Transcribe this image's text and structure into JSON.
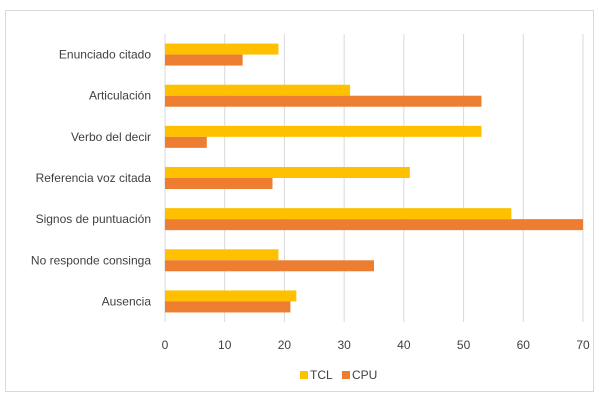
{
  "chart_data": {
    "type": "bar",
    "orientation": "horizontal",
    "title": "",
    "xlabel": "",
    "ylabel": "",
    "categories": [
      "Enunciado citado",
      "Articulación",
      "Verbo del decir",
      "Referencia voz citada",
      "Signos de puntuación",
      "No responde consinga",
      "Ausencia"
    ],
    "series": [
      {
        "name": "TCL",
        "color": "#FFC000",
        "values": [
          19,
          31,
          53,
          41,
          58,
          19,
          22
        ]
      },
      {
        "name": "CPU",
        "color": "#ED7D31",
        "values": [
          13,
          53,
          7,
          18,
          70,
          35,
          21
        ]
      }
    ],
    "xlim": [
      0,
      70
    ],
    "xticks": [
      "0",
      "10",
      "20",
      "30",
      "40",
      "50",
      "60",
      "70"
    ],
    "grid": true,
    "legend": "bottom"
  }
}
